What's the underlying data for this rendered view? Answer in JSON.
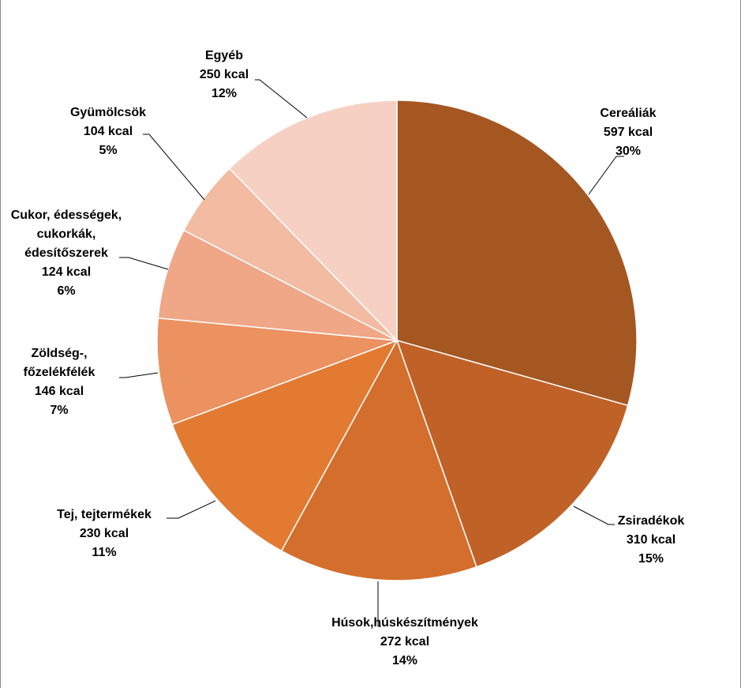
{
  "chart_data": {
    "type": "pie",
    "title": "",
    "unit": "kcal",
    "slices": [
      {
        "name": "Cereáliák",
        "value": 597,
        "value_label": "597 kcal",
        "percent": "30%",
        "color": "#A55722"
      },
      {
        "name": "Zsiradékok",
        "value": 310,
        "value_label": "310 kcal",
        "percent": "15%",
        "color": "#C06228"
      },
      {
        "name": "Húsok,húskészítmények",
        "value": 272,
        "value_label": "272 kcal",
        "percent": "14%",
        "color": "#D46E2C"
      },
      {
        "name": "Tej, tejtermékek",
        "value": 230,
        "value_label": "230 kcal",
        "percent": "11%",
        "color": "#E37A31"
      },
      {
        "name": "Zöldség-, főzelékfélék",
        "value": 146,
        "value_label": "146 kcal",
        "percent": "7%",
        "color": "#EC9160"
      },
      {
        "name": "Cukor, édességek, cukorkák, édesítőszerek",
        "value": 124,
        "value_label": "124 kcal",
        "percent": "6%",
        "color": "#EFA788"
      },
      {
        "name": "Gyümölcsök",
        "value": 104,
        "value_label": "104 kcal",
        "percent": "5%",
        "color": "#F2BBA2"
      },
      {
        "name": "Egyéb",
        "value": 250,
        "value_label": "250 kcal",
        "percent": "12%",
        "color": "#F6D1C3"
      }
    ],
    "label_lines": [
      [
        "Cereáliák",
        "597 kcal",
        "30%"
      ],
      [
        "Zsiradékok",
        "310 kcal",
        "15%"
      ],
      [
        "Húsok,húskészítmények",
        "272 kcal",
        "14%"
      ],
      [
        "Tej, tejtermékek",
        "230 kcal",
        "11%"
      ],
      [
        "Zöldség-,",
        "főzelékfélék",
        "146 kcal",
        "7%"
      ],
      [
        "Cukor, édességek,",
        "cukorkák,",
        "édesítőszerek",
        "124 kcal",
        "6%"
      ],
      [
        "Gyümölcsök",
        "104 kcal",
        "5%"
      ],
      [
        "Egyéb",
        "250 kcal",
        "12%"
      ]
    ],
    "start_angle": "12 o'clock",
    "direction": "clockwise",
    "legend": "none",
    "data_labels": "outside with leader lines"
  }
}
